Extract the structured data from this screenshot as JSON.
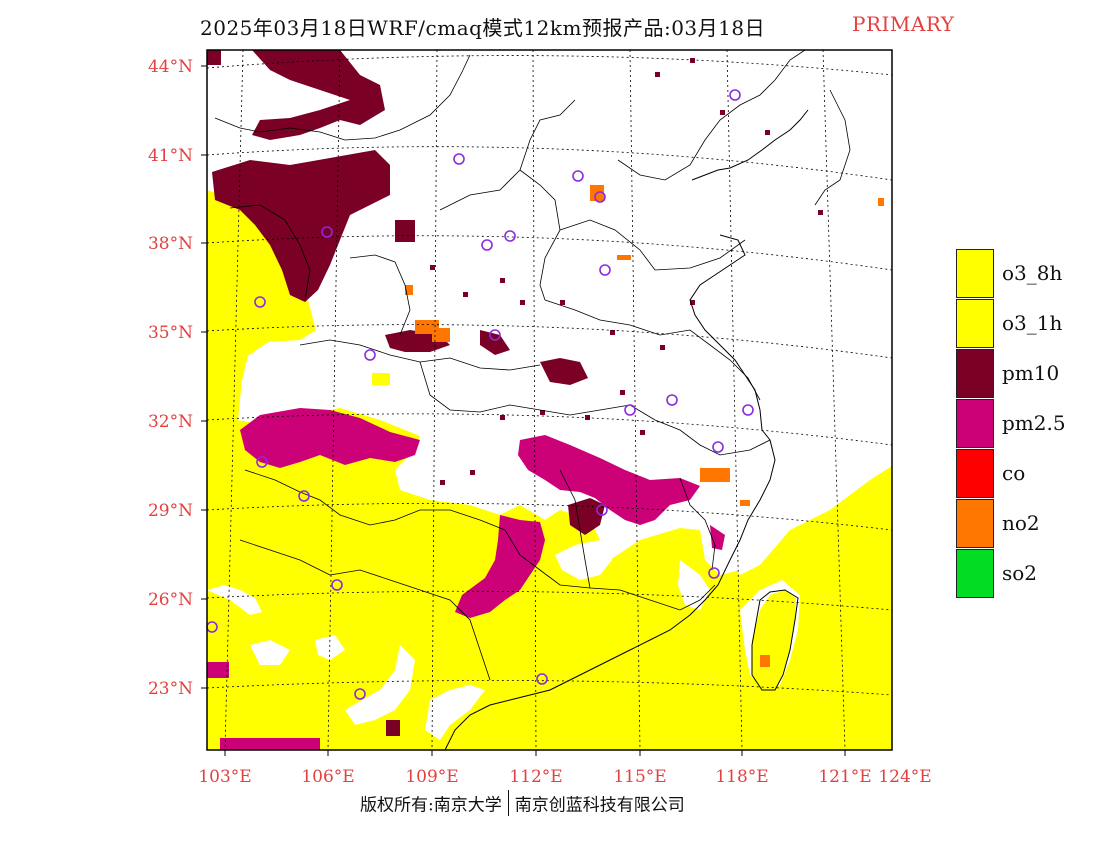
{
  "header": {
    "title": "2025年03月18日WRF/cmaq模式12km预报产品:03月18日",
    "tag": "PRIMARY",
    "tag_color": "#e34040"
  },
  "map": {
    "lat_labels": [
      "44°N",
      "41°N",
      "38°N",
      "35°N",
      "32°N",
      "29°N",
      "26°N",
      "23°N"
    ],
    "lon_labels": [
      "103°E",
      "106°E",
      "109°E",
      "112°E",
      "115°E",
      "118°E",
      "121°E",
      "124°E"
    ],
    "label_color": "#e34040"
  },
  "legend": {
    "items": [
      {
        "label": "o3_8h",
        "color": "#ffff00"
      },
      {
        "label": "o3_1h",
        "color": "#ffff00"
      },
      {
        "label": "pm10",
        "color": "#7a0026"
      },
      {
        "label": "pm2.5",
        "color": "#cc0077"
      },
      {
        "label": "co",
        "color": "#ff0000"
      },
      {
        "label": "no2",
        "color": "#ff7700"
      },
      {
        "label": "so2",
        "color": "#00dd22"
      }
    ]
  },
  "footer": {
    "left": "版权所有:南京大学",
    "right": "南京创蓝科技有限公司"
  }
}
